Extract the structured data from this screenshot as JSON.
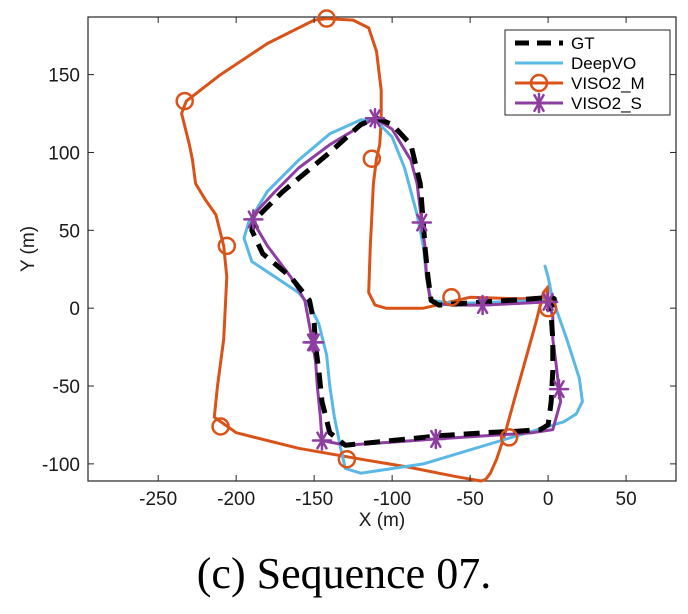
{
  "caption": "(c) Sequence 07.",
  "chart_data": {
    "type": "line",
    "title": "",
    "xlabel": "X (m)",
    "ylabel": "Y (m)",
    "xlim": [
      -295,
      82
    ],
    "ylim": [
      -111,
      187
    ],
    "xticks": [
      -250,
      -200,
      -150,
      -100,
      -50,
      0,
      50
    ],
    "yticks": [
      -100,
      -50,
      0,
      50,
      100,
      150
    ],
    "grid": false,
    "legend_position": "top-right",
    "series": [
      {
        "name": "GT",
        "color": "#000000",
        "style": "dashed",
        "marker": "none",
        "x": [
          0,
          3,
          4,
          4,
          2,
          -10,
          -40,
          -70,
          -75,
          -77,
          -79,
          -80,
          -82,
          -88,
          -100,
          -110,
          -120,
          -140,
          -170,
          -188,
          -190,
          -183,
          -165,
          -153,
          -150,
          -149,
          -147,
          -145,
          -140,
          -130,
          -100,
          -70,
          -40,
          -20,
          -5,
          0,
          2,
          3,
          3,
          2,
          0
        ],
        "y": [
          0,
          2,
          4,
          6,
          7,
          6,
          4,
          2,
          5,
          20,
          40,
          55,
          80,
          105,
          118,
          122,
          118,
          100,
          75,
          57,
          50,
          35,
          20,
          5,
          -10,
          -25,
          -40,
          -60,
          -80,
          -88,
          -85,
          -82,
          -80,
          -79,
          -78,
          -75,
          -60,
          -40,
          -20,
          -5,
          0
        ]
      },
      {
        "name": "DeepVO",
        "color": "#5ab8e6",
        "style": "solid",
        "marker": "none",
        "x": [
          -2,
          0,
          2,
          5,
          12,
          20,
          22,
          18,
          10,
          0,
          -30,
          -80,
          -120,
          -130,
          -133,
          -137,
          -140,
          -142,
          -147,
          -152,
          -160,
          -175,
          -190,
          -195,
          -192,
          -180,
          -160,
          -140,
          -120,
          -110,
          -100,
          -92,
          -84,
          -80,
          -78,
          -75,
          -60,
          -30,
          -5,
          5
        ],
        "y": [
          27,
          20,
          10,
          0,
          -20,
          -45,
          -60,
          -68,
          -73,
          -76,
          -85,
          -100,
          -106,
          -103,
          -90,
          -70,
          -50,
          -30,
          -10,
          0,
          10,
          20,
          30,
          45,
          55,
          75,
          95,
          112,
          121,
          120,
          110,
          90,
          60,
          40,
          20,
          5,
          3,
          4,
          5,
          5
        ],
        "points": 40
      },
      {
        "name": "VISO2_M",
        "color": "#d95319",
        "style": "solid",
        "marker": "circle",
        "marker_x": [
          -142,
          -233,
          -206,
          -210,
          -129,
          -25,
          0,
          -62,
          -113
        ],
        "marker_y": [
          186,
          133,
          40,
          -76,
          -97,
          -83,
          0,
          7,
          96
        ],
        "x": [
          0,
          -2,
          1,
          -3,
          -8,
          -15,
          -22,
          -28,
          -33,
          -37,
          -40,
          -43,
          -60,
          -90,
          -120,
          -160,
          -200,
          -214,
          -212,
          -208,
          -206,
          -208,
          -213,
          -220,
          -226,
          -228,
          -230,
          -235,
          -232,
          -210,
          -180,
          -150,
          -142,
          -125,
          -115,
          -110,
          -107,
          -107,
          -108,
          -110,
          -112,
          -113,
          -114,
          -115,
          -111,
          -104,
          -80,
          -50,
          -20,
          0,
          0
        ],
        "y": [
          0,
          5,
          15,
          10,
          -10,
          -35,
          -60,
          -82,
          -97,
          -106,
          -110,
          -111,
          -108,
          -102,
          -97,
          -90,
          -80,
          -70,
          -50,
          -20,
          20,
          40,
          60,
          70,
          80,
          95,
          105,
          125,
          133,
          150,
          170,
          185,
          186,
          185,
          180,
          165,
          140,
          120,
          105,
          96,
          80,
          60,
          40,
          10,
          2,
          0,
          0,
          7,
          6,
          6,
          5
        ]
      },
      {
        "name": "VISO2_S",
        "color": "#8e3ea1",
        "style": "solid",
        "marker": "asterisk",
        "marker_x": [
          -111,
          -81,
          -42,
          0,
          7,
          -72,
          -145,
          -151,
          -189,
          -150
        ],
        "marker_y": [
          122,
          55,
          2,
          4,
          -52,
          -84,
          -85,
          -22,
          57,
          -22
        ],
        "x": [
          -111,
          -100,
          -88,
          -84,
          -81,
          -79,
          -78,
          -76,
          -73,
          -60,
          -42,
          -20,
          0,
          3,
          3,
          5,
          7,
          8,
          3,
          -10,
          -40,
          -72,
          -100,
          -130,
          -145,
          -146,
          -148,
          -149,
          -151,
          -156,
          -165,
          -180,
          -190,
          -187,
          -175,
          -160,
          -140,
          -120,
          -111
        ],
        "y": [
          122,
          115,
          95,
          80,
          55,
          40,
          20,
          8,
          3,
          2,
          2,
          3,
          4,
          -5,
          -20,
          -35,
          -52,
          -60,
          -78,
          -80,
          -82,
          -84,
          -86,
          -88,
          -85,
          -70,
          -50,
          -35,
          -22,
          5,
          20,
          40,
          57,
          62,
          75,
          90,
          105,
          117,
          122
        ]
      }
    ]
  },
  "colors": {
    "axis": "#262626",
    "background": "#ffffff"
  }
}
